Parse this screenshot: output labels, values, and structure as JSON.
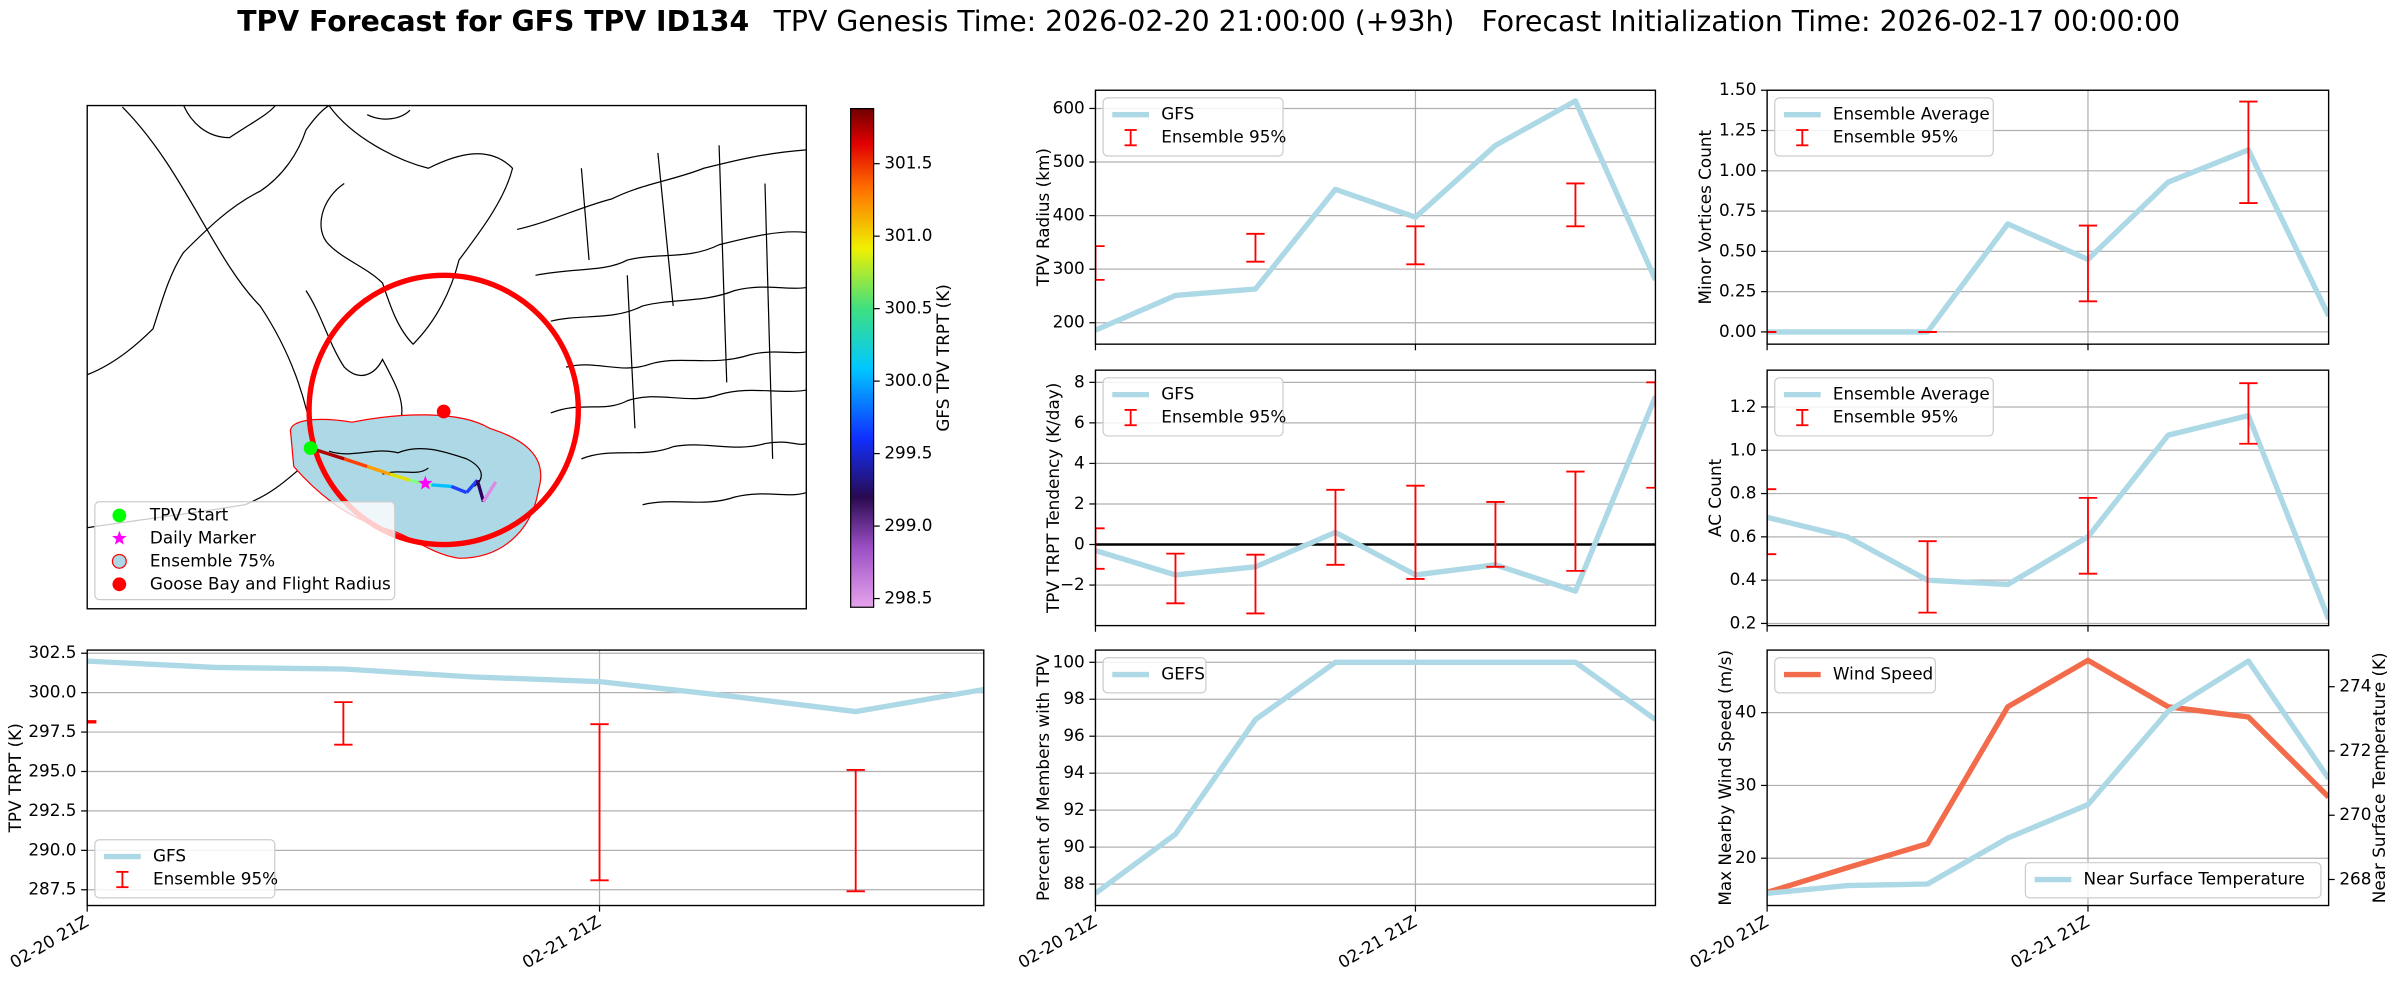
{
  "figure_title": {
    "title": "TPV Forecast for GFS TPV ID134",
    "subtitle": "TPV Genesis Time: 2026-02-20 21:00:00 (+93h)   Forecast Initialization Time: 2026-02-17 00:00:00"
  },
  "chart_data": [
    {
      "type": "map",
      "legend": [
        {
          "name": "TPV Start",
          "marker": "circle",
          "color": "#00ff00"
        },
        {
          "name": "Daily Marker",
          "marker": "star",
          "color": "#ff00ff"
        },
        {
          "name": "Ensemble 75%",
          "marker": "patch",
          "color": "#add8e6"
        },
        {
          "name": "Goose Bay and Flight Radius",
          "marker": "circle",
          "color": "#ff0000"
        }
      ],
      "colorbar": {
        "label": "GFS TPV TRPT (K)",
        "lim": [
          298.44,
          301.88
        ],
        "ticks": [
          298.5,
          {
            "value": 299,
            "label": "299.0"
          },
          299.5,
          {
            "value": 300,
            "label": "300.0"
          },
          300.5,
          {
            "value": 301,
            "label": "301.0"
          },
          301.5
        ]
      }
    },
    {
      "type": "line",
      "ylabel": "TPV Radius (km)",
      "x": [
        "02-20 21Z",
        "02-21 03Z",
        "02-21 09Z",
        "02-21 15Z",
        "02-21 21Z",
        "02-22 03Z",
        "02-22 09Z",
        "02-22 15Z"
      ],
      "xlim": [
        "02-20 21Z",
        "02-22 15Z"
      ],
      "xticks": [
        "02-20 21Z",
        "02-21 21Z"
      ],
      "xticklabels": false,
      "ylim": [
        160,
        634
      ],
      "yticks": [
        200,
        300,
        400,
        500,
        600
      ],
      "grid": true,
      "legend": "upper left",
      "series": [
        {
          "name": "GFS",
          "color": "#add8e6",
          "values": [
            186,
            251,
            263,
            449,
            397,
            531,
            614,
            280
          ]
        },
        {
          "name": "Ensemble 95%",
          "color": "#ff0000",
          "kind": "errorbar",
          "low": [
            280,
            null,
            314,
            null,
            309,
            null,
            380,
            null
          ],
          "high": [
            343,
            null,
            366,
            null,
            380,
            null,
            460,
            null
          ]
        }
      ]
    },
    {
      "type": "line",
      "ylabel": "Minor Vortices Count",
      "x": [
        "02-20 21Z",
        "02-21 03Z",
        "02-21 09Z",
        "02-21 15Z",
        "02-21 21Z",
        "02-22 03Z",
        "02-22 09Z",
        "02-22 15Z"
      ],
      "xlim": [
        "02-20 21Z",
        "02-22 15Z"
      ],
      "xticks": [
        "02-20 21Z",
        "02-21 21Z"
      ],
      "xticklabels": false,
      "ylim": [
        -0.076,
        1.5
      ],
      "yticks": [
        {
          "value": 0,
          "label": "0.00"
        },
        0.25,
        {
          "value": 0.5,
          "label": "0.50"
        },
        0.75,
        {
          "value": 1,
          "label": "1.00"
        },
        1.25,
        {
          "value": 1.5,
          "label": "1.50"
        }
      ],
      "grid": true,
      "legend": "upper left",
      "series": [
        {
          "name": "Ensemble Average",
          "color": "#add8e6",
          "values": [
            0,
            0,
            0,
            0.67,
            0.45,
            0.93,
            1.13,
            0.1
          ]
        },
        {
          "name": "Ensemble 95%",
          "color": "#ff0000",
          "kind": "errorbar",
          "low": [
            0,
            null,
            0,
            null,
            0.19,
            null,
            0.8,
            null
          ],
          "high": [
            0,
            null,
            0,
            null,
            0.66,
            null,
            1.43,
            null
          ]
        }
      ]
    },
    {
      "type": "line",
      "ylabel": "TPV TRPT Tendency (K/day)",
      "x": [
        "02-20 21Z",
        "02-21 03Z",
        "02-21 09Z",
        "02-21 15Z",
        "02-21 21Z",
        "02-22 03Z",
        "02-22 09Z",
        "02-22 15Z"
      ],
      "xlim": [
        "02-20 21Z",
        "02-22 15Z"
      ],
      "xticks": [
        "02-20 21Z",
        "02-21 21Z"
      ],
      "xticklabels": false,
      "ylim": [
        -4.0,
        8.6
      ],
      "yticks": [
        {
          "value": -2,
          "label": "−2"
        },
        0,
        2,
        4,
        6,
        8
      ],
      "grid": true,
      "legend": "upper left",
      "hline": 0,
      "series": [
        {
          "name": "GFS",
          "color": "#add8e6",
          "values": [
            -0.3,
            -1.5,
            -1.1,
            0.6,
            -1.5,
            -1.0,
            -2.3,
            7.3
          ]
        },
        {
          "name": "Ensemble 95%",
          "color": "#ff0000",
          "kind": "errorbar",
          "low": [
            -1.2,
            -2.9,
            -3.4,
            -1.0,
            -1.7,
            -1.1,
            -1.3,
            2.8
          ],
          "high": [
            0.8,
            -0.45,
            -0.5,
            2.7,
            2.9,
            2.1,
            3.6,
            8.0
          ]
        }
      ]
    },
    {
      "type": "line",
      "ylabel": "AC Count",
      "x": [
        "02-20 21Z",
        "02-21 03Z",
        "02-21 09Z",
        "02-21 15Z",
        "02-21 21Z",
        "02-22 03Z",
        "02-22 09Z",
        "02-22 15Z"
      ],
      "xlim": [
        "02-20 21Z",
        "02-22 15Z"
      ],
      "xticks": [
        "02-20 21Z",
        "02-21 21Z"
      ],
      "xticklabels": false,
      "ylim": [
        0.19,
        1.37
      ],
      "yticks": [
        0.2,
        0.4,
        0.6,
        0.8,
        {
          "value": 1,
          "label": "1.0"
        },
        1.2
      ],
      "grid": true,
      "legend": "upper left",
      "series": [
        {
          "name": "Ensemble Average",
          "color": "#add8e6",
          "values": [
            0.69,
            0.6,
            0.4,
            0.38,
            0.6,
            1.07,
            1.16,
            0.22
          ]
        },
        {
          "name": "Ensemble 95%",
          "color": "#ff0000",
          "kind": "errorbar",
          "low": [
            0.52,
            null,
            0.25,
            null,
            0.43,
            null,
            1.03,
            null
          ],
          "high": [
            0.82,
            null,
            0.58,
            null,
            0.78,
            null,
            1.31,
            null
          ]
        }
      ]
    },
    {
      "type": "line",
      "ylabel": "TPV TRPT (K)",
      "x": [
        "02-20 21Z",
        "02-21 03Z",
        "02-21 09Z",
        "02-21 15Z",
        "02-21 21Z",
        "02-22 03Z",
        "02-22 09Z",
        "02-22 15Z"
      ],
      "xlim": [
        "02-20 21Z",
        "02-22 15Z"
      ],
      "xticks": [
        "02-20 21Z",
        "02-21 21Z"
      ],
      "ylim": [
        286.5,
        302.7
      ],
      "yticks": [
        287.5,
        {
          "value": 290,
          "label": "290.0"
        },
        292.5,
        {
          "value": 295,
          "label": "295.0"
        },
        297.5,
        {
          "value": 300,
          "label": "300.0"
        },
        302.5
      ],
      "grid": true,
      "legend": "lower left",
      "series": [
        {
          "name": "GFS",
          "color": "#add8e6",
          "values": [
            302.0,
            301.6,
            301.5,
            301.0,
            300.7,
            299.8,
            298.8,
            300.2
          ]
        },
        {
          "name": "Ensemble 95%",
          "color": "#ff0000",
          "kind": "errorbar",
          "low": [
            298.1,
            null,
            296.7,
            null,
            288.1,
            null,
            287.4,
            null
          ],
          "high": [
            298.2,
            null,
            299.4,
            null,
            298.0,
            null,
            295.1,
            null
          ]
        }
      ]
    },
    {
      "type": "line",
      "ylabel": "Percent of Members with TPV",
      "x": [
        "02-20 21Z",
        "02-21 03Z",
        "02-21 09Z",
        "02-21 15Z",
        "02-21 21Z",
        "02-22 03Z",
        "02-22 09Z",
        "02-22 15Z"
      ],
      "xlim": [
        "02-20 21Z",
        "02-22 15Z"
      ],
      "xticks": [
        "02-20 21Z",
        "02-21 21Z"
      ],
      "ylim": [
        86.84,
        100.66
      ],
      "yticks": [
        88,
        90,
        92,
        94,
        96,
        98,
        100
      ],
      "grid": true,
      "legend": "upper left",
      "series": [
        {
          "name": "GEFS",
          "color": "#add8e6",
          "values": [
            87.5,
            90.7,
            96.9,
            100,
            100,
            100,
            100,
            96.9
          ]
        }
      ]
    },
    {
      "type": "line",
      "ylabel": "Max Nearby Wind Speed (m/s)",
      "ylabel_color": "#f26b4b",
      "y2label": "Near Surface Temperature (K)",
      "y2label_color": "#4169e1",
      "x": [
        "02-20 21Z",
        "02-21 03Z",
        "02-21 09Z",
        "02-21 15Z",
        "02-21 21Z",
        "02-22 03Z",
        "02-22 09Z",
        "02-22 15Z"
      ],
      "xlim": [
        "02-20 21Z",
        "02-22 15Z"
      ],
      "xticks": [
        "02-20 21Z",
        "02-21 21Z"
      ],
      "ylim": [
        13.5,
        48.6
      ],
      "yticks": [
        20,
        30,
        40
      ],
      "y2lim": [
        267.19,
        275.14
      ],
      "y2ticks": [
        268,
        270,
        272,
        274
      ],
      "grid": true,
      "legend": "upper left",
      "legend2": "lower right",
      "series": [
        {
          "name": "Wind Speed",
          "color": "#f26b4b",
          "values": [
            15.3,
            18.7,
            22.0,
            40.8,
            47.2,
            40.8,
            39.4,
            28.4
          ]
        },
        {
          "name": "Near Surface Temperature",
          "color": "#add8e6",
          "axis": "y2",
          "values": [
            267.57,
            267.81,
            267.86,
            269.29,
            270.33,
            273.24,
            274.8,
            271.14
          ]
        }
      ]
    }
  ]
}
